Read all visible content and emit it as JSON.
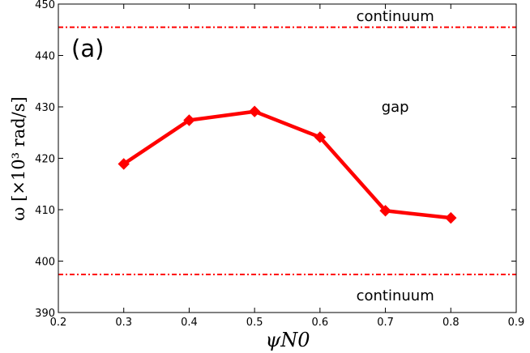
{
  "chart_data": {
    "type": "line",
    "panel_label": "(a)",
    "xlabel": "ψN0",
    "ylabel": "ω [×10³ rad/s]",
    "xlim": [
      0.2,
      0.9
    ],
    "ylim": [
      390,
      450
    ],
    "x_ticks": [
      "0.2",
      "0.3",
      "0.4",
      "0.5",
      "0.6",
      "0.7",
      "0.8",
      "0.9"
    ],
    "y_ticks": [
      "390",
      "400",
      "410",
      "420",
      "430",
      "440",
      "450"
    ],
    "grid": false,
    "series": [
      {
        "x": [
          0.3,
          0.4,
          0.5,
          0.6,
          0.7,
          0.8
        ],
        "y": [
          418.9,
          427.4,
          429.1,
          424.1,
          409.8,
          408.4
        ],
        "color": "#ff0000",
        "marker": "diamond"
      }
    ],
    "reference_lines": [
      {
        "y": 445.5,
        "color": "#ff0000",
        "style": "dash-dot"
      },
      {
        "y": 397.4,
        "color": "#ff0000",
        "style": "dash-dot"
      }
    ],
    "annotations": [
      {
        "text": "continuum",
        "x": 0.715,
        "y": 447.6
      },
      {
        "text": "gap",
        "x": 0.715,
        "y": 430.0
      },
      {
        "text": "continuum",
        "x": 0.715,
        "y": 393.3
      }
    ]
  }
}
